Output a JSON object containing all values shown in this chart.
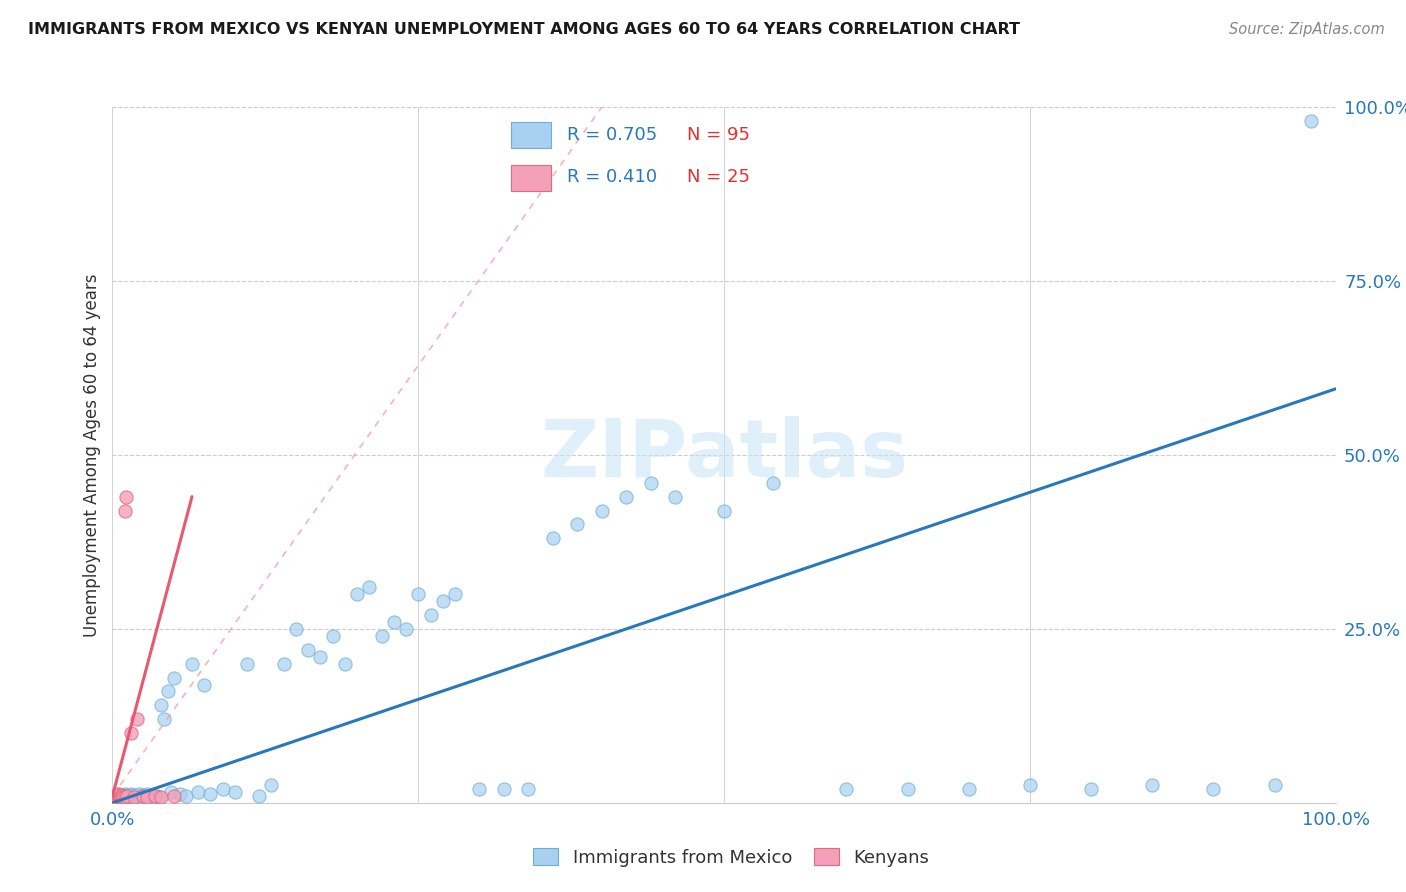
{
  "title": "IMMIGRANTS FROM MEXICO VS KENYAN UNEMPLOYMENT AMONG AGES 60 TO 64 YEARS CORRELATION CHART",
  "source": "Source: ZipAtlas.com",
  "ylabel": "Unemployment Among Ages 60 to 64 years",
  "legend_label_blue": "Immigrants from Mexico",
  "legend_label_pink": "Kenyans",
  "blue_color": "#A8D0F0",
  "blue_edge_color": "#6BAED6",
  "pink_color": "#F4A0B8",
  "pink_edge_color": "#E8687A",
  "blue_line_color": "#2878BE",
  "pink_line_color": "#E85870",
  "pink_dash_color": "#F0A0B0",
  "watermark_color": "#C8E4F8",
  "watermark": "ZIPatlas",
  "r_n_color": "#2878BE",
  "n_val_color": "#E83030",
  "xlim": [
    0.0,
    1.0
  ],
  "ylim": [
    0.0,
    1.0
  ],
  "blue_trend": [
    0.0,
    0.0,
    1.0,
    0.595
  ],
  "pink_trend_solid": [
    0.0,
    0.01,
    0.065,
    0.44
  ],
  "pink_trend_dash": [
    0.0,
    0.01,
    0.4,
    1.0
  ],
  "blue_pts_x": [
    0.003,
    0.004,
    0.005,
    0.005,
    0.006,
    0.006,
    0.007,
    0.007,
    0.008,
    0.008,
    0.009,
    0.009,
    0.01,
    0.01,
    0.011,
    0.011,
    0.012,
    0.012,
    0.013,
    0.013,
    0.014,
    0.014,
    0.015,
    0.015,
    0.016,
    0.017,
    0.017,
    0.018,
    0.019,
    0.02,
    0.021,
    0.022,
    0.023,
    0.024,
    0.025,
    0.026,
    0.027,
    0.028,
    0.029,
    0.03,
    0.032,
    0.034,
    0.036,
    0.038,
    0.04,
    0.042,
    0.045,
    0.048,
    0.05,
    0.055,
    0.06,
    0.065,
    0.07,
    0.075,
    0.08,
    0.09,
    0.1,
    0.11,
    0.12,
    0.13,
    0.14,
    0.15,
    0.16,
    0.17,
    0.18,
    0.19,
    0.2,
    0.21,
    0.22,
    0.23,
    0.24,
    0.25,
    0.26,
    0.27,
    0.28,
    0.3,
    0.32,
    0.34,
    0.36,
    0.38,
    0.4,
    0.42,
    0.44,
    0.46,
    0.5,
    0.54,
    0.6,
    0.65,
    0.7,
    0.75,
    0.8,
    0.85,
    0.9,
    0.95,
    0.98
  ],
  "blue_pts_y": [
    0.01,
    0.008,
    0.012,
    0.008,
    0.01,
    0.006,
    0.009,
    0.007,
    0.011,
    0.008,
    0.01,
    0.007,
    0.009,
    0.012,
    0.008,
    0.01,
    0.009,
    0.006,
    0.011,
    0.008,
    0.01,
    0.007,
    0.009,
    0.012,
    0.008,
    0.01,
    0.007,
    0.011,
    0.009,
    0.01,
    0.008,
    0.012,
    0.009,
    0.007,
    0.011,
    0.01,
    0.008,
    0.012,
    0.009,
    0.007,
    0.011,
    0.009,
    0.01,
    0.008,
    0.14,
    0.12,
    0.16,
    0.015,
    0.18,
    0.012,
    0.01,
    0.2,
    0.015,
    0.17,
    0.013,
    0.02,
    0.015,
    0.2,
    0.01,
    0.025,
    0.2,
    0.25,
    0.22,
    0.21,
    0.24,
    0.2,
    0.3,
    0.31,
    0.24,
    0.26,
    0.25,
    0.3,
    0.27,
    0.29,
    0.3,
    0.02,
    0.02,
    0.02,
    0.38,
    0.4,
    0.42,
    0.44,
    0.46,
    0.44,
    0.42,
    0.46,
    0.02,
    0.02,
    0.02,
    0.025,
    0.02,
    0.025,
    0.02,
    0.025,
    0.98
  ],
  "pink_pts_x": [
    0.002,
    0.003,
    0.003,
    0.004,
    0.004,
    0.005,
    0.005,
    0.006,
    0.006,
    0.007,
    0.007,
    0.008,
    0.009,
    0.01,
    0.01,
    0.011,
    0.012,
    0.015,
    0.018,
    0.02,
    0.025,
    0.028,
    0.035,
    0.04,
    0.05
  ],
  "pink_pts_y": [
    0.008,
    0.01,
    0.007,
    0.009,
    0.012,
    0.008,
    0.01,
    0.007,
    0.009,
    0.011,
    0.008,
    0.01,
    0.009,
    0.008,
    0.42,
    0.44,
    0.01,
    0.1,
    0.008,
    0.12,
    0.01,
    0.008,
    0.01,
    0.008,
    0.01
  ]
}
